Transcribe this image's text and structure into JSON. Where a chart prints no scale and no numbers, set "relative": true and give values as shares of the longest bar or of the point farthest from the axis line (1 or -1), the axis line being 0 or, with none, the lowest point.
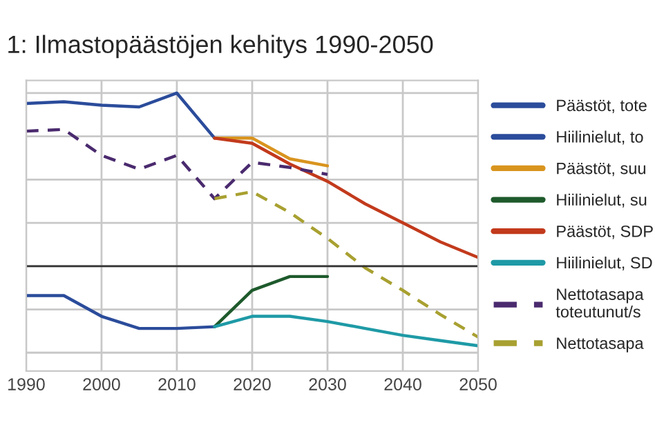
{
  "chart_data": {
    "type": "line",
    "title": "1: Ilmastopäästöjen kehitys 1990-2050",
    "relative": true,
    "xlim": [
      1990,
      2050
    ],
    "xticks": [
      1990,
      2000,
      2010,
      2020,
      2030,
      2040,
      2050
    ],
    "grid": true,
    "legend": "right",
    "tick_labels": "x",
    "series": [
      {
        "name": "Päästöt, tote",
        "color": "#2b4c9b",
        "x": [
          1990,
          1995,
          2000,
          2005,
          2010,
          2015
        ],
        "values": [
          0.94,
          0.95,
          0.93,
          0.92,
          1,
          0.74
        ]
      },
      {
        "name": "Hiilinielut, to",
        "color": "#2b4c9b",
        "x": [
          1990,
          1995,
          2000,
          2005,
          2010,
          2015
        ],
        "values": [
          -0.17,
          -0.17,
          -0.29,
          -0.36,
          -0.36,
          -0.35
        ]
      },
      {
        "name": "Päästöt, suu",
        "color": "#d9941e",
        "x": [
          2015,
          2020,
          2025,
          2030
        ],
        "values": [
          0.74,
          0.74,
          0.62,
          0.58
        ]
      },
      {
        "name": "Hiilinielut, su",
        "color": "#1e5a2c",
        "x": [
          2015,
          2020,
          2025,
          2030
        ],
        "values": [
          -0.35,
          -0.14,
          -0.06,
          -0.06
        ]
      },
      {
        "name": "Päästöt, SDP",
        "color": "#c23a1c",
        "x": [
          2015,
          2020,
          2025,
          2030,
          2035,
          2040,
          2045,
          2050
        ],
        "values": [
          0.74,
          0.71,
          0.59,
          0.49,
          0.36,
          0.25,
          0.14,
          0.05
        ]
      },
      {
        "name": "Hiilinielut, SD",
        "color": "#1e9aa6",
        "x": [
          2015,
          2020,
          2025,
          2030,
          2035,
          2040,
          2045,
          2050
        ],
        "values": [
          -0.35,
          -0.29,
          -0.29,
          -0.32,
          -0.36,
          -0.4,
          -0.43,
          -0.46
        ]
      },
      {
        "name": "Nettotasapa\ntoteutunut/s",
        "color": "#4a2a6e",
        "line_style": "dashed",
        "x": [
          1990,
          1995,
          2000,
          2005,
          2010,
          2015,
          2020,
          2025,
          2030
        ],
        "values": [
          0.78,
          0.79,
          0.64,
          0.56,
          0.64,
          0.39,
          0.6,
          0.57,
          0.53
        ]
      },
      {
        "name": "Nettotasapa",
        "color": "#a8a030",
        "line_style": "dashed",
        "x": [
          2015,
          2020,
          2025,
          2030,
          2035,
          2040,
          2045,
          2050
        ],
        "values": [
          0.39,
          0.43,
          0.31,
          0.16,
          -0.01,
          -0.14,
          -0.28,
          -0.41
        ]
      }
    ]
  }
}
